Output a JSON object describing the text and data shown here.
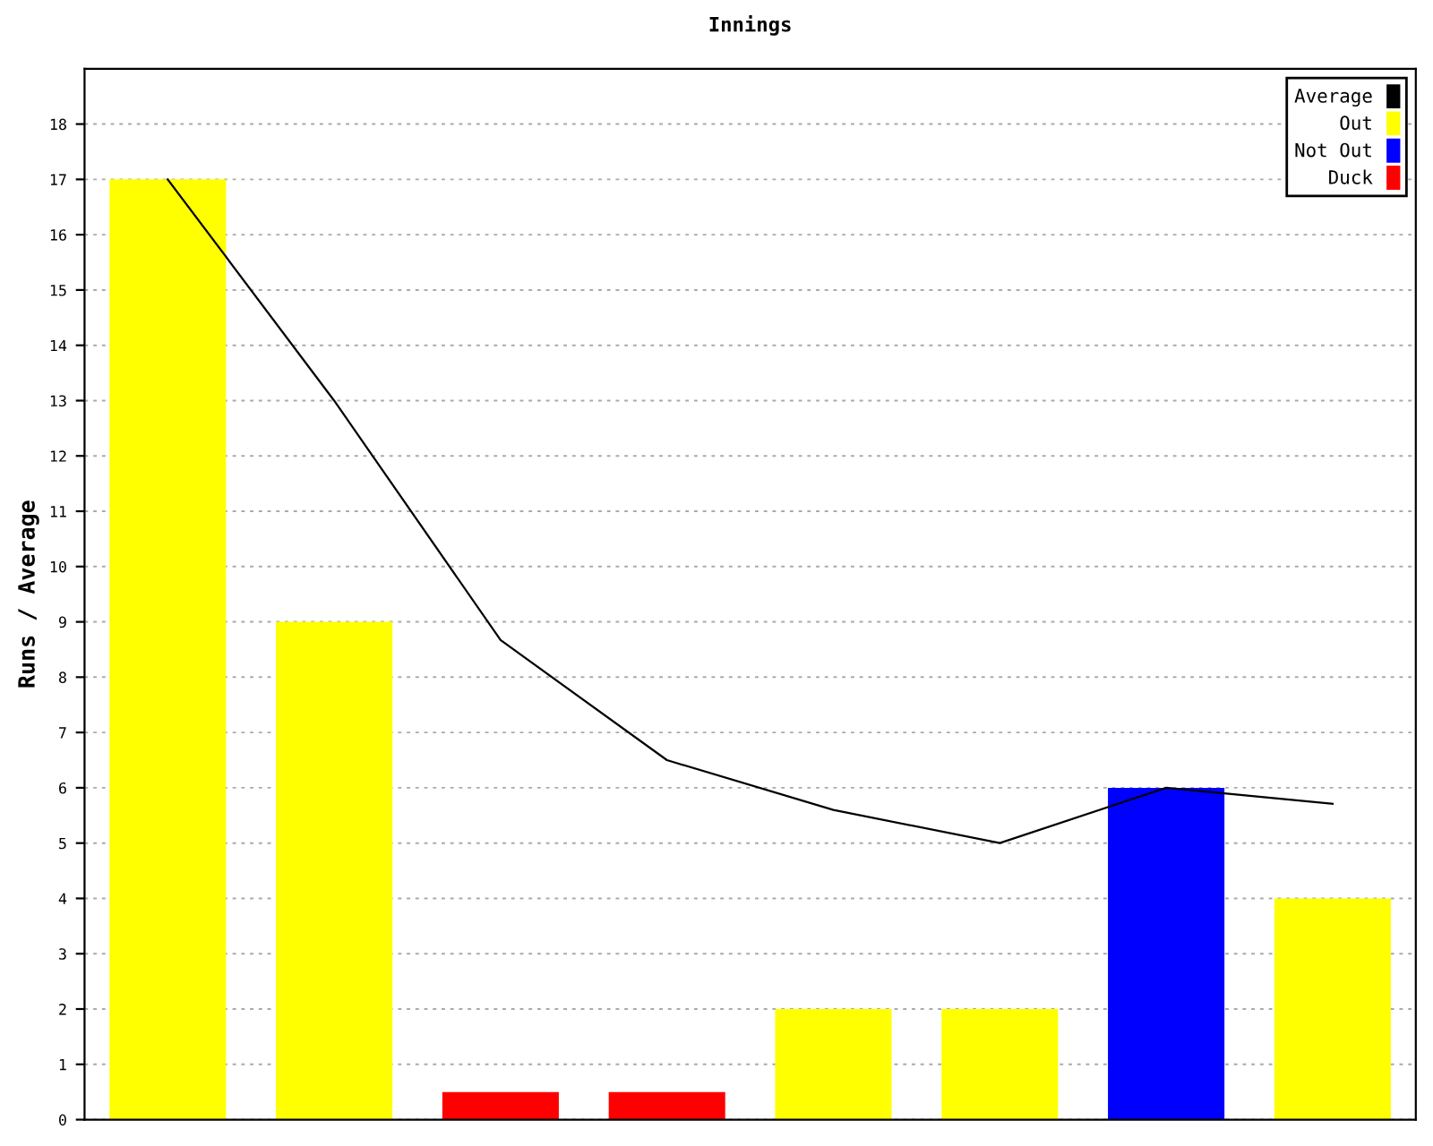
{
  "chart_data": {
    "type": "bar",
    "title": "Innings",
    "ylabel": "Runs / Average",
    "categories": [
      null,
      null,
      null,
      null,
      null,
      null,
      null,
      null
    ],
    "series": [
      {
        "name": "Average",
        "type": "line",
        "color": "#000000",
        "values": [
          17,
          13,
          8.67,
          6.5,
          5.6,
          5,
          6,
          5.71
        ]
      },
      {
        "name": "Out",
        "color": "#ffff00",
        "values": [
          17,
          9,
          null,
          null,
          2,
          2,
          null,
          4
        ]
      },
      {
        "name": "Not Out",
        "color": "#0000ff",
        "values": [
          null,
          null,
          null,
          null,
          null,
          null,
          6,
          null
        ]
      },
      {
        "name": "Duck",
        "color": "#ff0000",
        "values": [
          null,
          null,
          0.5,
          0.5,
          null,
          null,
          null,
          null
        ]
      }
    ],
    "ylim": [
      0,
      19
    ],
    "yticks": [
      0,
      1,
      2,
      3,
      4,
      5,
      6,
      7,
      8,
      9,
      10,
      11,
      12,
      13,
      14,
      15,
      16,
      17,
      18
    ],
    "grid": "y",
    "legend": "top right",
    "tick_labels": "y",
    "marker": "none"
  }
}
